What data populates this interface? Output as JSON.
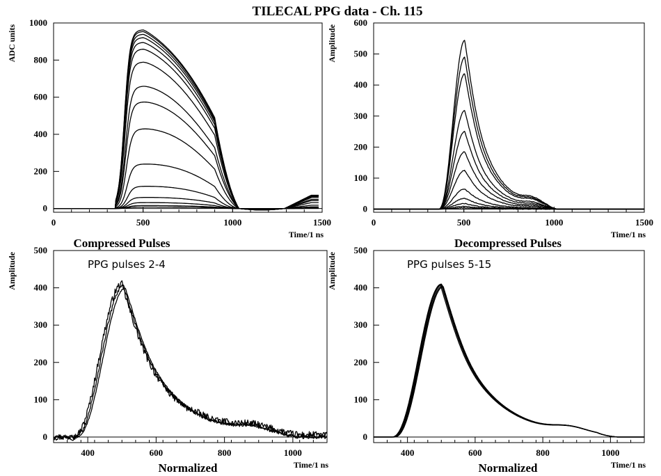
{
  "figure_title": "TILECAL PPG data - Ch. 115",
  "chart_data": [
    {
      "id": "p0",
      "type": "line",
      "title": "Compressed Pulses",
      "xlabel": "Time/1 ns",
      "ylabel": "ADC units",
      "xlim": [
        0,
        1500
      ],
      "ylim": [
        -20,
        1000
      ],
      "xticks": [
        0,
        500,
        1000,
        1500
      ],
      "yticks": [
        0,
        200,
        400,
        600,
        800,
        1000
      ],
      "series_amplitudes": [
        964,
        955,
        940,
        922,
        896,
        860,
        790,
        660,
        575,
        430,
        240,
        120,
        60,
        32,
        16,
        8
      ],
      "shape": "compressed pulse: rise from 350 ns, peak about 500 ns, fall to zero at 1030 ns, small negative dip around 1250 ns, rising tail to 1480 ns"
    },
    {
      "id": "p1",
      "type": "line",
      "title": "Decompressed Pulses",
      "xlabel": "Time/1 ns",
      "ylabel": "Amplitude",
      "xlim": [
        0,
        1500
      ],
      "ylim": [
        -10,
        600
      ],
      "xticks": [
        0,
        500,
        1000,
        1500
      ],
      "yticks": [
        0,
        100,
        200,
        300,
        400,
        500,
        600
      ],
      "series_amplitudes": [
        545,
        490,
        437,
        318,
        250,
        185,
        125,
        65,
        35,
        18,
        9,
        4
      ],
      "shape": "pulse: rise from 360 ns, peak about 505 ns, long tail with shoulder near 850 ns, zero by 1000 ns"
    },
    {
      "id": "p2",
      "type": "line",
      "title": "Normalized",
      "xlabel": "Time/1 ns",
      "ylabel": "Amplitude",
      "annotation": "PPG pulses 2-4",
      "xlim": [
        300,
        1100
      ],
      "ylim": [
        -15,
        500
      ],
      "xticks": [
        400,
        600,
        800,
        1000
      ],
      "yticks": [
        0,
        100,
        200,
        300,
        400,
        500
      ],
      "series": [
        {
          "peak": 410,
          "peak_time": 500,
          "noise": 9
        },
        {
          "peak": 405,
          "peak_time": 505,
          "noise": 5
        },
        {
          "peak": 400,
          "peak_time": 510,
          "noise": 2
        }
      ]
    },
    {
      "id": "p3",
      "type": "line",
      "title": "Normalized",
      "xlabel": "Time/1 ns",
      "ylabel": "Amplitude",
      "annotation": "PPG pulses 5-15",
      "xlim": [
        300,
        1100
      ],
      "ylim": [
        -15,
        500
      ],
      "xticks": [
        400,
        600,
        800,
        1000
      ],
      "yticks": [
        0,
        100,
        200,
        300,
        400,
        500
      ],
      "series": [
        {
          "peak": 410,
          "peak_time": 500,
          "noise": 0
        },
        {
          "peak": 408,
          "peak_time": 502,
          "noise": 0
        },
        {
          "peak": 405,
          "peak_time": 504,
          "noise": 0
        },
        {
          "peak": 403,
          "peak_time": 506,
          "noise": 0
        },
        {
          "peak": 406,
          "peak_time": 498,
          "noise": 0
        }
      ]
    }
  ]
}
